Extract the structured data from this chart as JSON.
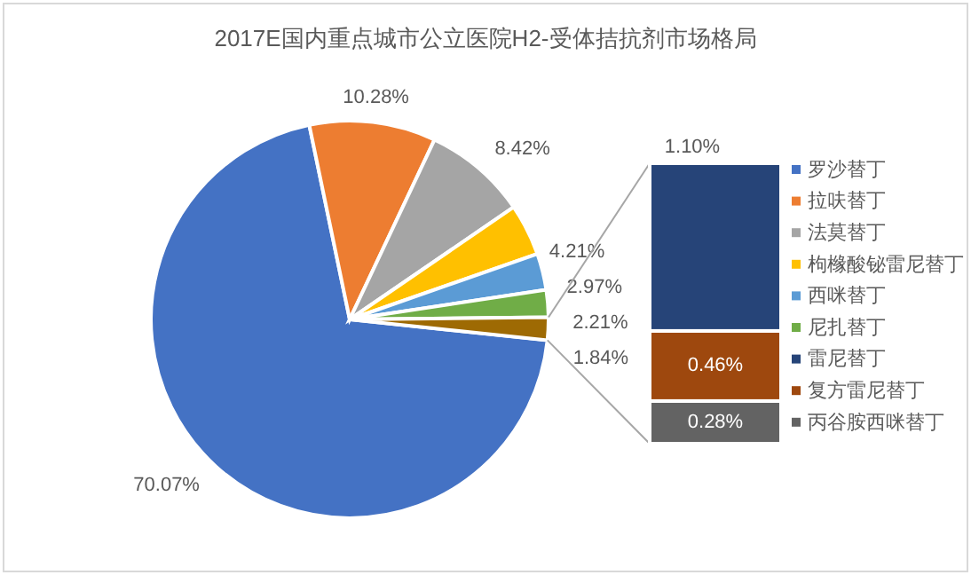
{
  "chart_data": [
    {
      "type": "pie",
      "title": "2017E国内重点城市公立医院H2-受体拮抗剂市场格局",
      "categories": [
        "罗沙替丁",
        "拉呋替丁",
        "法莫替丁",
        "枸橼酸铋雷尼替丁",
        "西咪替丁",
        "尼扎替丁",
        null
      ],
      "values": [
        70.07,
        10.28,
        8.42,
        4.21,
        2.97,
        2.21,
        1.84
      ],
      "colors": [
        "#4472c4",
        "#ed7d31",
        "#a5a5a5",
        "#ffc000",
        "#5b9bd5",
        "#70ad47",
        "#9e6a03"
      ],
      "value_labels": [
        "70.07%",
        "10.28%",
        "8.42%",
        "4.21%",
        "2.97%",
        "2.21%",
        "1.84%"
      ],
      "legend": "right"
    },
    {
      "type": "bar",
      "stacked": true,
      "categories": [
        null
      ],
      "legend": "right",
      "series": [
        {
          "name": "丙谷胺西咪替丁",
          "color": "#636363",
          "values": [
            0.28
          ],
          "value_labels": [
            "0.28%"
          ]
        },
        {
          "name": "复方雷尼替丁",
          "color": "#9e480e",
          "values": [
            0.46
          ],
          "value_labels": [
            "0.46%"
          ]
        },
        {
          "name": "雷尼替丁",
          "color": "#264478",
          "values": [
            1.1
          ],
          "value_labels": [
            "1.10%"
          ]
        }
      ]
    }
  ]
}
